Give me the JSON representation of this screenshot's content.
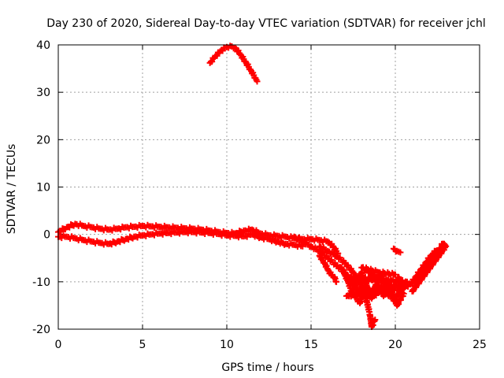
{
  "chart_data": {
    "type": "scatter",
    "title": "Day 230 of 2020, Sidereal Day-to-day VTEC variation (SDTVAR) for receiver jchl",
    "xlabel": "GPS time / hours",
    "ylabel": "SDTVAR / TECUs",
    "xlim": [
      0,
      25
    ],
    "ylim": [
      -20,
      40
    ],
    "xticks": [
      0,
      5,
      10,
      15,
      20,
      25
    ],
    "yticks": [
      -20,
      -10,
      0,
      10,
      20,
      30,
      40
    ],
    "grid": true,
    "marker": "+",
    "series_color": "#ff0000",
    "series": [
      {
        "name": "main-band-upper",
        "x": [
          0.0,
          0.5,
          1.0,
          1.5,
          2.0,
          2.5,
          3.0,
          3.5,
          4.0,
          4.5,
          5.0,
          5.5,
          6.0,
          6.5,
          7.0,
          7.5,
          8.0,
          8.5,
          9.0,
          9.5,
          10.0,
          10.5,
          11.0,
          11.5,
          12.0,
          12.5,
          13.0,
          13.5,
          14.0,
          14.5,
          15.0,
          15.5,
          16.0,
          16.3,
          16.6
        ],
        "y": [
          0.5,
          1.5,
          2.2,
          1.8,
          1.5,
          1.2,
          1.0,
          1.2,
          1.5,
          1.6,
          1.8,
          1.7,
          1.6,
          1.5,
          1.4,
          1.3,
          1.2,
          1.0,
          0.8,
          0.5,
          0.3,
          0.2,
          0.8,
          1.0,
          0.2,
          -0.2,
          -0.3,
          -0.5,
          -0.8,
          -1.0,
          -1.0,
          -1.2,
          -1.5,
          -2.5,
          -4.0
        ]
      },
      {
        "name": "main-band-lower",
        "x": [
          0.0,
          0.5,
          1.0,
          1.5,
          2.0,
          2.5,
          3.0,
          3.5,
          4.0,
          4.5,
          5.0,
          5.5,
          6.0,
          6.5,
          7.0,
          7.5,
          8.0,
          8.5,
          9.0,
          9.5,
          10.0,
          10.5,
          11.0,
          11.5,
          12.0,
          12.5,
          13.0,
          13.5,
          14.0,
          14.5
        ],
        "y": [
          -0.5,
          -0.5,
          -0.8,
          -1.2,
          -1.5,
          -1.8,
          -2.0,
          -1.5,
          -1.0,
          -0.5,
          -0.2,
          0.0,
          0.2,
          0.3,
          0.4,
          0.5,
          0.5,
          0.4,
          0.3,
          0.1,
          -0.2,
          -0.3,
          -0.4,
          0.0,
          -0.6,
          -1.0,
          -1.5,
          -2.0,
          -2.2,
          -2.5
        ]
      },
      {
        "name": "arc-9-12h",
        "x": [
          9.0,
          9.3,
          9.6,
          9.9,
          10.2,
          10.5,
          10.8,
          11.1,
          11.4,
          11.7,
          11.8
        ],
        "y": [
          36.2,
          37.5,
          38.6,
          39.4,
          39.8,
          39.4,
          38.0,
          36.5,
          34.8,
          33.0,
          32.3
        ]
      },
      {
        "name": "descending-branch-a",
        "x": [
          14.0,
          14.5,
          15.0,
          15.5,
          16.0,
          16.5,
          17.0,
          17.5,
          18.0
        ],
        "y": [
          -0.5,
          -1.5,
          -2.5,
          -3.5,
          -5.0,
          -6.5,
          -8.0,
          -10.5,
          -13.0
        ]
      },
      {
        "name": "descending-branch-b",
        "x": [
          15.5,
          16.0,
          16.5,
          17.0,
          17.5,
          18.0,
          18.3,
          18.5,
          18.6,
          18.8
        ],
        "y": [
          -2.5,
          -3.5,
          -4.5,
          -6.0,
          -8.0,
          -11.0,
          -14.0,
          -17.0,
          -19.5,
          -18.0
        ]
      },
      {
        "name": "branch-c",
        "x": [
          15.5,
          15.8,
          16.0,
          16.2,
          16.4,
          16.5
        ],
        "y": [
          -4.5,
          -6.0,
          -7.5,
          -8.5,
          -9.0,
          -10.0
        ]
      },
      {
        "name": "scatter-cluster-17-21h",
        "x": [
          16.8,
          17.0,
          17.2,
          17.4,
          17.6,
          17.8,
          18.0,
          18.2,
          18.4,
          18.6,
          18.8,
          19.0,
          19.2,
          19.4,
          19.6,
          19.8,
          20.0,
          20.2,
          20.4,
          20.6,
          17.1,
          17.5,
          17.9,
          18.3,
          18.7,
          19.1,
          19.5,
          19.9,
          20.3,
          20.7,
          17.3,
          17.7,
          18.1,
          18.5,
          18.9,
          19.3,
          19.7,
          20.1,
          20.5,
          18.0,
          19.0,
          20.0
        ],
        "y": [
          -7.0,
          -8.5,
          -10.0,
          -12.0,
          -11.0,
          -9.5,
          -8.0,
          -10.5,
          -12.5,
          -13.5,
          -11.0,
          -9.0,
          -8.5,
          -11.5,
          -13.0,
          -12.0,
          -10.0,
          -9.0,
          -11.5,
          -10.5,
          -13.0,
          -12.5,
          -14.5,
          -11.0,
          -13.0,
          -12.0,
          -10.0,
          -14.0,
          -12.0,
          -10.0,
          -9.0,
          -11.5,
          -12.0,
          -9.0,
          -10.0,
          -13.0,
          -11.0,
          -15.0,
          -12.5,
          -7.0,
          -8.0,
          -8.5
        ]
      },
      {
        "name": "small-cluster-20h",
        "x": [
          19.9,
          20.1,
          20.3
        ],
        "y": [
          -3.0,
          -3.5,
          -3.8
        ]
      },
      {
        "name": "recovery-21-23h",
        "x": [
          20.6,
          20.9,
          21.2,
          21.5,
          21.8,
          22.1,
          22.4,
          22.7,
          22.9,
          23.0,
          21.0,
          21.3,
          21.6,
          21.9,
          22.2,
          22.5,
          22.8
        ],
        "y": [
          -11.0,
          -10.5,
          -9.0,
          -7.5,
          -6.0,
          -4.5,
          -3.5,
          -3.0,
          -2.0,
          -2.5,
          -12.0,
          -10.0,
          -8.0,
          -7.0,
          -5.5,
          -4.0,
          -2.0
        ]
      }
    ]
  }
}
